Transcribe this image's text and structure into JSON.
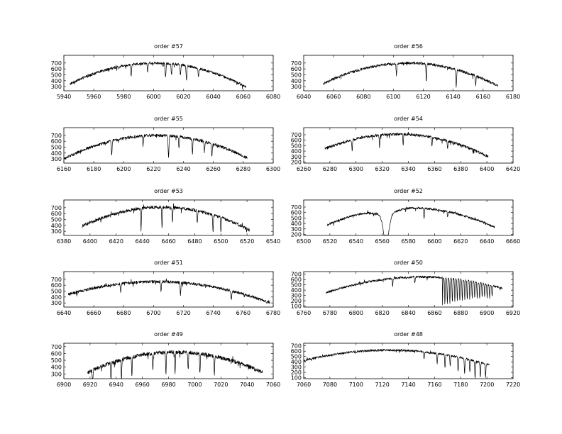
{
  "chart_data": [
    {
      "type": "line",
      "title": "order #57",
      "xlim": [
        5940,
        6080
      ],
      "xticks": [
        "5940",
        "5960",
        "5980",
        "6000",
        "6020",
        "6040",
        "6060",
        "6080"
      ],
      "ylim": [
        230,
        830
      ],
      "yticks": [
        "300",
        "400",
        "500",
        "600",
        "700"
      ],
      "continuum": {
        "x_start": 5944,
        "x_end": 6062,
        "center": 6001,
        "peak": 700,
        "edge": 295,
        "noise": 22
      },
      "absorption_lines": [
        {
          "x": 5985,
          "depth": 180
        },
        {
          "x": 5996,
          "depth": 150
        },
        {
          "x": 6008,
          "depth": 240
        },
        {
          "x": 6012,
          "depth": 200
        },
        {
          "x": 6018,
          "depth": 170
        },
        {
          "x": 6022,
          "depth": 260
        },
        {
          "x": 6030,
          "depth": 140
        }
      ]
    },
    {
      "type": "line",
      "title": "order #56",
      "xlim": [
        6040,
        6180
      ],
      "xticks": [
        "6040",
        "6060",
        "6080",
        "6100",
        "6120",
        "6140",
        "6160",
        "6180"
      ],
      "ylim": [
        230,
        830
      ],
      "yticks": [
        "300",
        "400",
        "500",
        "600",
        "700"
      ],
      "continuum": {
        "x_start": 6053,
        "x_end": 6170,
        "center": 6110,
        "peak": 700,
        "edge": 310,
        "noise": 22
      },
      "absorption_lines": [
        {
          "x": 6102,
          "depth": 200
        },
        {
          "x": 6122,
          "depth": 280
        },
        {
          "x": 6142,
          "depth": 300
        },
        {
          "x": 6155,
          "depth": 150
        }
      ]
    },
    {
      "type": "line",
      "title": "order #55",
      "xlim": [
        6160,
        6300
      ],
      "xticks": [
        "6160",
        "6180",
        "6200",
        "6220",
        "6240",
        "6260",
        "6280",
        "6300"
      ],
      "ylim": [
        230,
        830
      ],
      "yticks": [
        "300",
        "400",
        "500",
        "600",
        "700"
      ],
      "continuum": {
        "x_start": 6160,
        "x_end": 6283,
        "center": 6222,
        "peak": 700,
        "edge": 300,
        "noise": 24
      },
      "absorption_lines": [
        {
          "x": 6192,
          "depth": 230
        },
        {
          "x": 6213,
          "depth": 150
        },
        {
          "x": 6230,
          "depth": 380
        },
        {
          "x": 6237,
          "depth": 190
        },
        {
          "x": 6246,
          "depth": 220
        },
        {
          "x": 6254,
          "depth": 170
        },
        {
          "x": 6259,
          "depth": 210
        }
      ]
    },
    {
      "type": "line",
      "title": "order #54",
      "xlim": [
        6260,
        6420
      ],
      "xticks": [
        "6260",
        "6280",
        "6300",
        "6320",
        "6340",
        "6360",
        "6380",
        "6400",
        "6420"
      ],
      "ylim": [
        180,
        830
      ],
      "yticks": [
        "200",
        "300",
        "400",
        "500",
        "600",
        "700"
      ],
      "continuum": {
        "x_start": 6276,
        "x_end": 6401,
        "center": 6332,
        "peak": 710,
        "edge": 300,
        "noise": 24
      },
      "absorption_lines": [
        {
          "x": 6297,
          "depth": 200
        },
        {
          "x": 6318,
          "depth": 230
        },
        {
          "x": 6336,
          "depth": 190
        },
        {
          "x": 6358,
          "depth": 170
        },
        {
          "x": 6370,
          "depth": 150
        }
      ]
    },
    {
      "type": "line",
      "title": "order #53",
      "xlim": [
        6380,
        6540
      ],
      "xticks": [
        "6380",
        "6400",
        "6420",
        "6440",
        "6460",
        "6480",
        "6500",
        "6520",
        "6540"
      ],
      "ylim": [
        230,
        830
      ],
      "yticks": [
        "300",
        "400",
        "500",
        "600",
        "700"
      ],
      "continuum": {
        "x_start": 6394,
        "x_end": 6522,
        "center": 6455,
        "peak": 710,
        "edge": 320,
        "noise": 26
      },
      "absorption_lines": [
        {
          "x": 6439,
          "depth": 330
        },
        {
          "x": 6455,
          "depth": 350
        },
        {
          "x": 6463,
          "depth": 260
        },
        {
          "x": 6482,
          "depth": 220
        },
        {
          "x": 6494,
          "depth": 300
        },
        {
          "x": 6500,
          "depth": 260
        }
      ]
    },
    {
      "type": "line",
      "title": "order #52",
      "xlim": [
        6500,
        6660
      ],
      "xticks": [
        "6500",
        "6520",
        "6540",
        "6560",
        "6580",
        "6600",
        "6620",
        "6640",
        "6660"
      ],
      "ylim": [
        180,
        830
      ],
      "yticks": [
        "200",
        "300",
        "400",
        "500",
        "600",
        "700"
      ],
      "continuum": {
        "x_start": 6518,
        "x_end": 6646,
        "center": 6580,
        "peak": 690,
        "edge": 330,
        "noise": 20
      },
      "broad_lines": [
        {
          "x": 6563,
          "depth": 520,
          "width": 3,
          "wing_depth": 90,
          "wing_width": 12
        }
      ],
      "absorption_lines": [
        {
          "x": 6592,
          "depth": 180
        },
        {
          "x": 6610,
          "depth": 100
        }
      ]
    },
    {
      "type": "line",
      "title": "order #51",
      "xlim": [
        6640,
        6780
      ],
      "xticks": [
        "6640",
        "6660",
        "6680",
        "6700",
        "6720",
        "6740",
        "6760",
        "6780"
      ],
      "ylim": [
        230,
        830
      ],
      "yticks": [
        "300",
        "400",
        "500",
        "600",
        "700"
      ],
      "continuum": {
        "x_start": 6643,
        "x_end": 6778,
        "center": 6702,
        "peak": 660,
        "edge": 300,
        "noise": 24
      },
      "absorption_lines": [
        {
          "x": 6678,
          "depth": 150
        },
        {
          "x": 6705,
          "depth": 160
        },
        {
          "x": 6718,
          "depth": 200
        },
        {
          "x": 6752,
          "depth": 130
        }
      ]
    },
    {
      "type": "line",
      "title": "order #50",
      "xlim": [
        6760,
        6920
      ],
      "xticks": [
        "6760",
        "6780",
        "6800",
        "6820",
        "6840",
        "6860",
        "6880",
        "6900",
        "6920"
      ],
      "ylim": [
        80,
        750
      ],
      "yticks": [
        "100",
        "200",
        "300",
        "400",
        "500",
        "600",
        "700"
      ],
      "continuum": {
        "x_start": 6777,
        "x_end": 6912,
        "center": 6850,
        "peak": 650,
        "edge": 350,
        "noise": 20
      },
      "absorption_lines": [
        {
          "x": 6828,
          "depth": 150
        },
        {
          "x": 6845,
          "depth": 120
        }
      ],
      "band": {
        "x_start": 6866,
        "x_end": 6905,
        "spacing": 1.9,
        "depth_start": 520,
        "depth_end": 200
      }
    },
    {
      "type": "line",
      "title": "order #49",
      "xlim": [
        6900,
        7060
      ],
      "xticks": [
        "6900",
        "6920",
        "6940",
        "6960",
        "6980",
        "7000",
        "7020",
        "7040",
        "7060"
      ],
      "ylim": [
        230,
        750
      ],
      "yticks": [
        "300",
        "400",
        "500",
        "600",
        "700"
      ],
      "continuum": {
        "x_start": 6918,
        "x_end": 7052,
        "center": 6985,
        "peak": 620,
        "edge": 320,
        "noise": 28
      },
      "absorption_lines": [
        {
          "x": 6922,
          "depth": 200
        },
        {
          "x": 6936,
          "depth": 300
        },
        {
          "x": 6944,
          "depth": 320
        },
        {
          "x": 6952,
          "depth": 280
        },
        {
          "x": 6968,
          "depth": 250
        },
        {
          "x": 6978,
          "depth": 330
        },
        {
          "x": 6985,
          "depth": 300
        },
        {
          "x": 6995,
          "depth": 260
        },
        {
          "x": 7004,
          "depth": 300
        },
        {
          "x": 7015,
          "depth": 270
        }
      ]
    },
    {
      "type": "line",
      "title": "order #48",
      "xlim": [
        7060,
        7220
      ],
      "xticks": [
        "7060",
        "7080",
        "7100",
        "7120",
        "7140",
        "7160",
        "7180",
        "7200",
        "7220"
      ],
      "ylim": [
        80,
        750
      ],
      "yticks": [
        "100",
        "200",
        "300",
        "400",
        "500",
        "600",
        "700"
      ],
      "continuum": {
        "x_start": 7060,
        "x_end": 7202,
        "center": 7125,
        "peak": 620,
        "edge": 340,
        "noise": 20
      },
      "absorption_lines": [
        {
          "x": 7152,
          "depth": 150
        },
        {
          "x": 7162,
          "depth": 200
        },
        {
          "x": 7168,
          "depth": 250
        },
        {
          "x": 7172,
          "depth": 200
        },
        {
          "x": 7178,
          "depth": 300
        },
        {
          "x": 7183,
          "depth": 280
        },
        {
          "x": 7187,
          "depth": 250
        },
        {
          "x": 7191,
          "depth": 330
        },
        {
          "x": 7195,
          "depth": 300
        },
        {
          "x": 7199,
          "depth": 260
        }
      ]
    }
  ]
}
